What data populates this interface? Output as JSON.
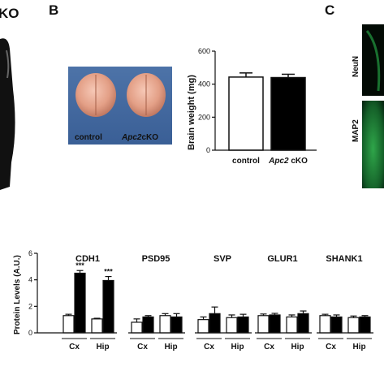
{
  "panels": {
    "a_fragment": "KO",
    "b": "B",
    "c": "C"
  },
  "photo_labels": {
    "left": "control",
    "right_italic": "Apc2",
    "right_suffix": "cKO"
  },
  "micrograph_labels": [
    "NeuN",
    "MAP2"
  ],
  "colors": {
    "control": "#ffffff",
    "cko": "#000000",
    "brain": "#e8a690",
    "micrograph_green": "#1f8a3a"
  },
  "chart_data": [
    {
      "type": "bar",
      "ylabel": "Brain weight (mg)",
      "ylim": [
        0,
        600
      ],
      "yticks": [
        0,
        200,
        400,
        600
      ],
      "categories": [
        "control",
        "Apc2 cKO"
      ],
      "category_label_parts": [
        {
          "italic": "",
          "plain": "control"
        },
        {
          "italic": "Apc2",
          "plain": " cKO"
        }
      ],
      "values": [
        443,
        440
      ],
      "errors": [
        25,
        20
      ],
      "fills": [
        "#ffffff",
        "#000000"
      ]
    },
    {
      "type": "bar",
      "ylabel": "Protein Levels (A.U.)",
      "ylim": [
        0,
        6
      ],
      "yticks": [
        0,
        2,
        4,
        6
      ],
      "groups": [
        "CDH1",
        "PSD95",
        "SVP",
        "GLUR1",
        "SHANK1"
      ],
      "subgroups": [
        "Cx",
        "Hip"
      ],
      "significance": "***",
      "series": [
        {
          "name": "control",
          "values": [
            [
              1.3,
              1.05
            ],
            [
              0.8,
              1.3
            ],
            [
              1.0,
              1.15
            ],
            [
              1.3,
              1.2
            ],
            [
              1.3,
              1.15
            ]
          ],
          "errors": [
            [
              0.1,
              0.05
            ],
            [
              0.25,
              0.15
            ],
            [
              0.2,
              0.2
            ],
            [
              0.12,
              0.15
            ],
            [
              0.1,
              0.12
            ]
          ]
        },
        {
          "name": "cKO",
          "values": [
            [
              4.5,
              3.95
            ],
            [
              1.2,
              1.2
            ],
            [
              1.45,
              1.2
            ],
            [
              1.35,
              1.45
            ],
            [
              1.2,
              1.2
            ]
          ],
          "errors": [
            [
              0.2,
              0.3
            ],
            [
              0.1,
              0.25
            ],
            [
              0.5,
              0.2
            ],
            [
              0.12,
              0.2
            ],
            [
              0.15,
              0.1
            ]
          ]
        }
      ],
      "significant": [
        [
          true,
          true
        ],
        [
          false,
          false
        ],
        [
          false,
          false
        ],
        [
          false,
          false
        ],
        [
          false,
          false
        ]
      ]
    }
  ]
}
